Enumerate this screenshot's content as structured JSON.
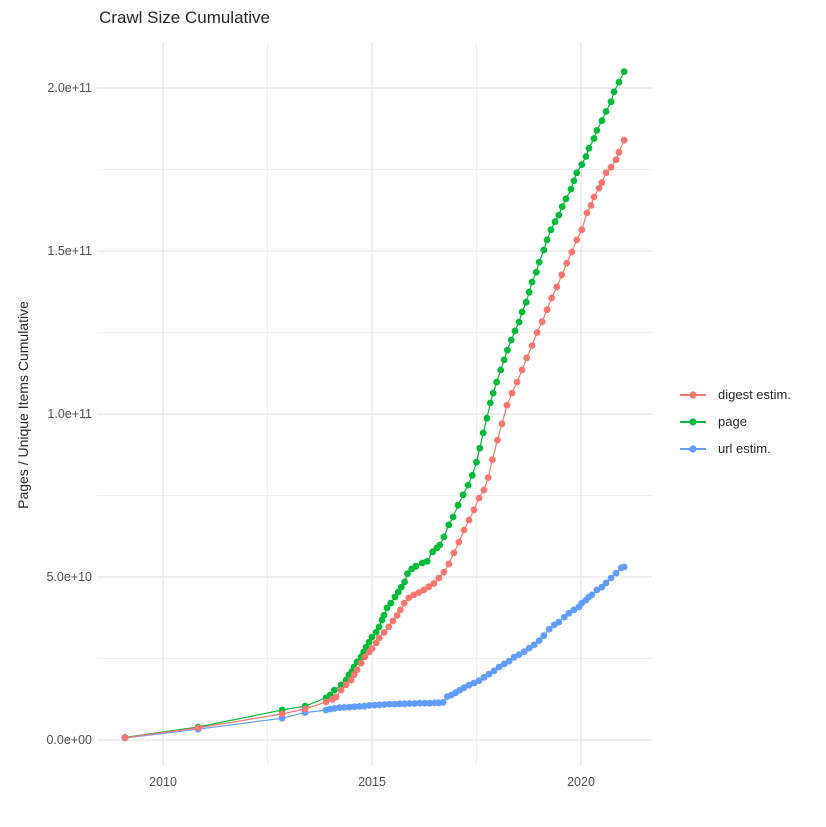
{
  "chart_data": {
    "type": "scatter",
    "title": "Crawl Size Cumulative",
    "xlabel": "",
    "ylabel": "Pages / Unique Items Cumulative",
    "legend_position": "right",
    "grid": true,
    "x_axis": {
      "ticks": [
        {
          "label": "2010",
          "value": 2010
        },
        {
          "label": "2015",
          "value": 2015
        },
        {
          "label": "2020",
          "value": 2020
        }
      ],
      "minor_ticks": [
        2012.5,
        2017.5
      ],
      "range": [
        2008.4,
        2021.7
      ]
    },
    "y_axis": {
      "ticks": [
        {
          "label": "0.0e+00",
          "value": 0
        },
        {
          "label": "5.0e+10",
          "value": 50000000000.0
        },
        {
          "label": "1.0e+11",
          "value": 100000000000.0
        },
        {
          "label": "1.5e+11",
          "value": 150000000000.0
        },
        {
          "label": "2.0e+11",
          "value": 200000000000.0
        }
      ],
      "minor_ticks": [
        25000000000.0,
        75000000000.0,
        125000000000.0,
        175000000000.0
      ],
      "range": [
        -8000000000.0,
        214000000000.0
      ]
    },
    "series": [
      {
        "name": "digest estim.",
        "color": "#F8766D",
        "points": [
          [
            2009.09,
            700000000.0
          ],
          [
            2010.84,
            3700000000.0
          ],
          [
            2012.85,
            8000000000.0
          ],
          [
            2013.4,
            9500000000.0
          ],
          [
            2013.9,
            11700000000.0
          ],
          [
            2014.05,
            12500000000.0
          ],
          [
            2014.14,
            13200000000.0
          ],
          [
            2014.26,
            15300000000.0
          ],
          [
            2014.38,
            16900000000.0
          ],
          [
            2014.5,
            18400000000.0
          ],
          [
            2014.57,
            20000000000.0
          ],
          [
            2014.64,
            21500000000.0
          ],
          [
            2014.74,
            23600000000.0
          ],
          [
            2014.83,
            25500000000.0
          ],
          [
            2014.93,
            27000000000.0
          ],
          [
            2015.0,
            28000000000.0
          ],
          [
            2015.1,
            29800000000.0
          ],
          [
            2015.17,
            31300000000.0
          ],
          [
            2015.29,
            33000000000.0
          ],
          [
            2015.4,
            34700000000.0
          ],
          [
            2015.5,
            36500000000.0
          ],
          [
            2015.6,
            38200000000.0
          ],
          [
            2015.68,
            39900000000.0
          ],
          [
            2015.77,
            42000000000.0
          ],
          [
            2015.88,
            43600000000.0
          ],
          [
            2016.0,
            44500000000.0
          ],
          [
            2016.12,
            45200000000.0
          ],
          [
            2016.24,
            46000000000.0
          ],
          [
            2016.36,
            47000000000.0
          ],
          [
            2016.48,
            48000000000.0
          ],
          [
            2016.6,
            49700000000.0
          ],
          [
            2016.72,
            51500000000.0
          ],
          [
            2016.84,
            54000000000.0
          ],
          [
            2016.96,
            57400000000.0
          ],
          [
            2017.08,
            60700000000.0
          ],
          [
            2017.2,
            64400000000.0
          ],
          [
            2017.32,
            67500000000.0
          ],
          [
            2017.44,
            70600000000.0
          ],
          [
            2017.56,
            74200000000.0
          ],
          [
            2017.68,
            76700000000.0
          ],
          [
            2017.78,
            80500000000.0
          ],
          [
            2017.88,
            86000000000.0
          ],
          [
            2018.0,
            92000000000.0
          ],
          [
            2018.11,
            97000000000.0
          ],
          [
            2018.23,
            102700000000.0
          ],
          [
            2018.35,
            106400000000.0
          ],
          [
            2018.47,
            109800000000.0
          ],
          [
            2018.59,
            113500000000.0
          ],
          [
            2018.7,
            117200000000.0
          ],
          [
            2018.83,
            121000000000.0
          ],
          [
            2018.95,
            125000000000.0
          ],
          [
            2019.07,
            128300000000.0
          ],
          [
            2019.19,
            132000000000.0
          ],
          [
            2019.3,
            135600000000.0
          ],
          [
            2019.42,
            139000000000.0
          ],
          [
            2019.54,
            142700000000.0
          ],
          [
            2019.66,
            146300000000.0
          ],
          [
            2019.78,
            149700000000.0
          ],
          [
            2019.9,
            153400000000.0
          ],
          [
            2020.02,
            156500000000.0
          ],
          [
            2020.14,
            161700000000.0
          ],
          [
            2020.24,
            164000000000.0
          ],
          [
            2020.31,
            166600000000.0
          ],
          [
            2020.43,
            169300000000.0
          ],
          [
            2020.5,
            171000000000.0
          ],
          [
            2020.6,
            174000000000.0
          ],
          [
            2020.72,
            175700000000.0
          ],
          [
            2020.84,
            178000000000.0
          ],
          [
            2020.91,
            180300000000.0
          ],
          [
            2021.03,
            184000000000.0
          ]
        ]
      },
      {
        "name": "page",
        "color": "#00BA38",
        "points": [
          [
            2009.09,
            800000000.0
          ],
          [
            2010.84,
            4000000000.0
          ],
          [
            2012.85,
            9200000000.0
          ],
          [
            2013.4,
            10400000000.0
          ],
          [
            2013.9,
            12900000000.0
          ],
          [
            2014.0,
            13800000000.0
          ],
          [
            2014.1,
            15300000000.0
          ],
          [
            2014.26,
            16900000000.0
          ],
          [
            2014.38,
            18400000000.0
          ],
          [
            2014.45,
            20000000000.0
          ],
          [
            2014.52,
            21000000000.0
          ],
          [
            2014.57,
            22400000000.0
          ],
          [
            2014.64,
            24000000000.0
          ],
          [
            2014.74,
            25500000000.0
          ],
          [
            2014.8,
            27000000000.0
          ],
          [
            2014.86,
            28500000000.0
          ],
          [
            2014.93,
            30000000000.0
          ],
          [
            2015.0,
            31600000000.0
          ],
          [
            2015.1,
            33100000000.0
          ],
          [
            2015.17,
            34700000000.0
          ],
          [
            2015.24,
            36800000000.0
          ],
          [
            2015.29,
            38300000000.0
          ],
          [
            2015.36,
            40500000000.0
          ],
          [
            2015.45,
            42000000000.0
          ],
          [
            2015.55,
            43900000000.0
          ],
          [
            2015.63,
            45400000000.0
          ],
          [
            2015.7,
            46900000000.0
          ],
          [
            2015.78,
            48500000000.0
          ],
          [
            2015.85,
            51000000000.0
          ],
          [
            2015.95,
            52500000000.0
          ],
          [
            2016.05,
            53300000000.0
          ],
          [
            2016.2,
            54300000000.0
          ],
          [
            2016.32,
            54800000000.0
          ],
          [
            2016.45,
            57700000000.0
          ],
          [
            2016.55,
            58900000000.0
          ],
          [
            2016.62,
            59800000000.0
          ],
          [
            2016.72,
            62300000000.0
          ],
          [
            2016.84,
            66000000000.0
          ],
          [
            2016.94,
            68400000000.0
          ],
          [
            2017.06,
            72000000000.0
          ],
          [
            2017.18,
            75200000000.0
          ],
          [
            2017.3,
            78200000000.0
          ],
          [
            2017.4,
            81200000000.0
          ],
          [
            2017.5,
            85200000000.0
          ],
          [
            2017.58,
            89500000000.0
          ],
          [
            2017.66,
            94200000000.0
          ],
          [
            2017.75,
            98700000000.0
          ],
          [
            2017.83,
            103400000000.0
          ],
          [
            2017.9,
            106400000000.0
          ],
          [
            2017.98,
            109800000000.0
          ],
          [
            2018.08,
            113500000000.0
          ],
          [
            2018.16,
            116600000000.0
          ],
          [
            2018.24,
            119600000000.0
          ],
          [
            2018.33,
            122700000000.0
          ],
          [
            2018.42,
            125500000000.0
          ],
          [
            2018.52,
            128200000000.0
          ],
          [
            2018.59,
            131300000000.0
          ],
          [
            2018.69,
            134300000000.0
          ],
          [
            2018.76,
            137400000000.0
          ],
          [
            2018.83,
            140500000000.0
          ],
          [
            2018.93,
            143500000000.0
          ],
          [
            2019.0,
            146600000000.0
          ],
          [
            2019.11,
            150300000000.0
          ],
          [
            2019.19,
            153400000000.0
          ],
          [
            2019.28,
            156500000000.0
          ],
          [
            2019.38,
            159000000000.0
          ],
          [
            2019.47,
            161000000000.0
          ],
          [
            2019.55,
            163600000000.0
          ],
          [
            2019.64,
            166000000000.0
          ],
          [
            2019.76,
            169000000000.0
          ],
          [
            2019.83,
            171500000000.0
          ],
          [
            2019.9,
            174000000000.0
          ],
          [
            2020.02,
            176500000000.0
          ],
          [
            2020.12,
            179000000000.0
          ],
          [
            2020.19,
            181500000000.0
          ],
          [
            2020.31,
            184500000000.0
          ],
          [
            2020.38,
            187000000000.0
          ],
          [
            2020.5,
            190000000000.0
          ],
          [
            2020.6,
            192800000000.0
          ],
          [
            2020.72,
            195800000000.0
          ],
          [
            2020.79,
            198800000000.0
          ],
          [
            2020.91,
            201800000000.0
          ],
          [
            2021.03,
            205000000000.0
          ]
        ]
      },
      {
        "name": "url estim.",
        "color": "#619CFF",
        "points": [
          [
            2009.09,
            600000000.0
          ],
          [
            2010.84,
            3300000000.0
          ],
          [
            2012.85,
            6700000000.0
          ],
          [
            2013.4,
            8400000000.0
          ],
          [
            2013.9,
            9200000000.0
          ],
          [
            2014.0,
            9500000000.0
          ],
          [
            2014.1,
            9700000000.0
          ],
          [
            2014.22,
            9900000000.0
          ],
          [
            2014.34,
            10000000000.0
          ],
          [
            2014.46,
            10100000000.0
          ],
          [
            2014.58,
            10200000000.0
          ],
          [
            2014.7,
            10300000000.0
          ],
          [
            2014.82,
            10400000000.0
          ],
          [
            2014.94,
            10600000000.0
          ],
          [
            2015.06,
            10700000000.0
          ],
          [
            2015.18,
            10800000000.0
          ],
          [
            2015.3,
            10900000000.0
          ],
          [
            2015.42,
            11000000000.0
          ],
          [
            2015.54,
            11000000000.0
          ],
          [
            2015.66,
            11100000000.0
          ],
          [
            2015.78,
            11100000000.0
          ],
          [
            2015.9,
            11200000000.0
          ],
          [
            2016.02,
            11200000000.0
          ],
          [
            2016.14,
            11300000000.0
          ],
          [
            2016.26,
            11300000000.0
          ],
          [
            2016.38,
            11300000000.0
          ],
          [
            2016.5,
            11400000000.0
          ],
          [
            2016.6,
            11400000000.0
          ],
          [
            2016.7,
            11500000000.0
          ],
          [
            2016.8,
            13300000000.0
          ],
          [
            2016.9,
            13800000000.0
          ],
          [
            2017.0,
            14500000000.0
          ],
          [
            2017.1,
            15300000000.0
          ],
          [
            2017.2,
            16000000000.0
          ],
          [
            2017.32,
            16800000000.0
          ],
          [
            2017.44,
            17500000000.0
          ],
          [
            2017.56,
            18200000000.0
          ],
          [
            2017.68,
            19200000000.0
          ],
          [
            2017.8,
            20200000000.0
          ],
          [
            2017.92,
            21200000000.0
          ],
          [
            2018.04,
            22400000000.0
          ],
          [
            2018.16,
            23300000000.0
          ],
          [
            2018.28,
            24200000000.0
          ],
          [
            2018.4,
            25400000000.0
          ],
          [
            2018.52,
            26200000000.0
          ],
          [
            2018.64,
            27100000000.0
          ],
          [
            2018.76,
            28200000000.0
          ],
          [
            2018.88,
            29200000000.0
          ],
          [
            2019.0,
            30500000000.0
          ],
          [
            2019.11,
            32000000000.0
          ],
          [
            2019.24,
            34000000000.0
          ],
          [
            2019.36,
            35300000000.0
          ],
          [
            2019.47,
            36200000000.0
          ],
          [
            2019.6,
            37700000000.0
          ],
          [
            2019.71,
            38900000000.0
          ],
          [
            2019.83,
            39900000000.0
          ],
          [
            2019.95,
            40800000000.0
          ],
          [
            2020.02,
            42000000000.0
          ],
          [
            2020.12,
            42900000000.0
          ],
          [
            2020.19,
            43900000000.0
          ],
          [
            2020.26,
            44500000000.0
          ],
          [
            2020.38,
            46000000000.0
          ],
          [
            2020.5,
            46900000000.0
          ],
          [
            2020.6,
            48200000000.0
          ],
          [
            2020.72,
            49700000000.0
          ],
          [
            2020.84,
            51200000000.0
          ],
          [
            2020.96,
            52800000000.0
          ],
          [
            2021.03,
            53100000000.0
          ]
        ]
      }
    ],
    "colors": {
      "grid_major": "#e4e4e4",
      "grid_minor": "#f0f0f0",
      "tick_text": "#4d4d4d",
      "title_text": "#262626"
    }
  }
}
